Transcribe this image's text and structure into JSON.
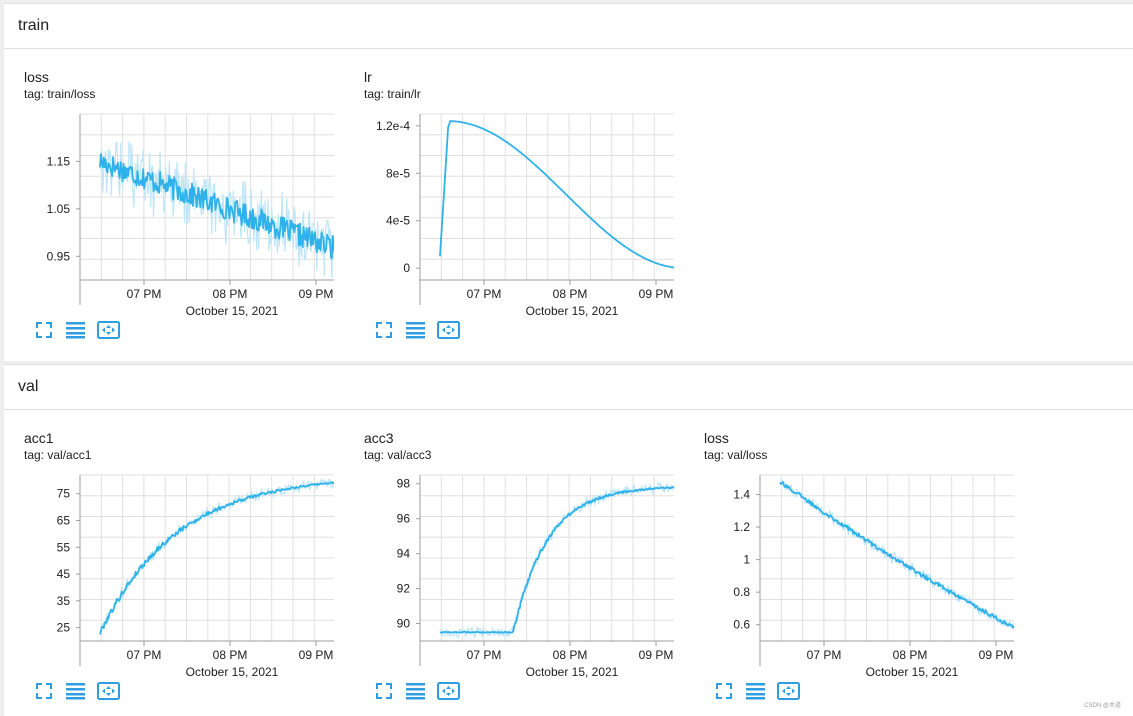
{
  "groups": [
    {
      "title": "train",
      "cards": [
        {
          "title": "loss",
          "tag": "tag: train/loss",
          "chart_data": {
            "type": "line",
            "series_kind": "noisy_decay",
            "y_ticks": [
              0.95,
              1.05,
              1.15
            ],
            "y_tick_labels": [
              "0.95",
              "1.05",
              "1.15"
            ],
            "ylim": [
              0.9,
              1.25
            ],
            "x_tick_labels": [
              "07 PM",
              "08 PM",
              "09 PM"
            ],
            "x_date_label": "October 15, 2021",
            "smoothed_start": 1.15,
            "smoothed_end": 0.96,
            "last_value": 0.94
          }
        },
        {
          "title": "lr",
          "tag": "tag: train/lr",
          "chart_data": {
            "type": "line",
            "series_kind": "warmup_cosine",
            "y_ticks": [
              0,
              4e-05,
              8e-05,
              0.00012
            ],
            "y_tick_labels": [
              "0",
              "4e-5",
              "8e-5",
              "1.2e-4"
            ],
            "ylim": [
              -1e-05,
              0.00013
            ],
            "x_tick_labels": [
              "07 PM",
              "08 PM",
              "09 PM"
            ],
            "x_date_label": "October 15, 2021",
            "start_value": 1e-05,
            "peak_value": 0.000124,
            "last_value": 0
          }
        }
      ]
    },
    {
      "title": "val",
      "cards": [
        {
          "title": "acc1",
          "tag": "tag: val/acc1",
          "chart_data": {
            "type": "line",
            "series_kind": "rise",
            "y_ticks": [
              25,
              35,
              45,
              55,
              65,
              75
            ],
            "y_tick_labels": [
              "25",
              "35",
              "45",
              "55",
              "65",
              "75"
            ],
            "ylim": [
              20,
              82
            ],
            "x_tick_labels": [
              "07 PM",
              "08 PM",
              "09 PM"
            ],
            "x_date_label": "October 15, 2021",
            "start_value": 23,
            "last_value": 79.5
          }
        },
        {
          "title": "acc3",
          "tag": "tag: val/acc3",
          "chart_data": {
            "type": "line",
            "series_kind": "step_rise",
            "y_ticks": [
              90,
              92,
              94,
              96,
              98
            ],
            "y_tick_labels": [
              "90",
              "92",
              "94",
              "96",
              "98"
            ],
            "ylim": [
              89,
              98.5
            ],
            "x_tick_labels": [
              "07 PM",
              "08 PM",
              "09 PM"
            ],
            "x_date_label": "October 15, 2021",
            "start_value": 89.5,
            "last_value": 97.8
          }
        },
        {
          "title": "loss",
          "tag": "tag: val/loss",
          "chart_data": {
            "type": "line",
            "series_kind": "decay",
            "y_ticks": [
              0.6,
              0.8,
              1,
              1.2,
              1.4
            ],
            "y_tick_labels": [
              "0.6",
              "0.8",
              "1",
              "1.2",
              "1.4"
            ],
            "ylim": [
              0.5,
              1.52
            ],
            "x_tick_labels": [
              "07 PM",
              "08 PM",
              "09 PM"
            ],
            "x_date_label": "October 15, 2021",
            "start_value": 1.48,
            "last_value": 0.55
          }
        }
      ]
    }
  ],
  "colors": {
    "series": "#2fb1ea",
    "series_light": "#bfe6f8",
    "grid": "#e0e0e0",
    "axis": "#9e9e9e",
    "icon": "#2f9de0"
  },
  "icons": [
    "fullscreen-icon",
    "data-table-icon",
    "fit-domain-icon"
  ],
  "watermark": "CSDN @木道"
}
